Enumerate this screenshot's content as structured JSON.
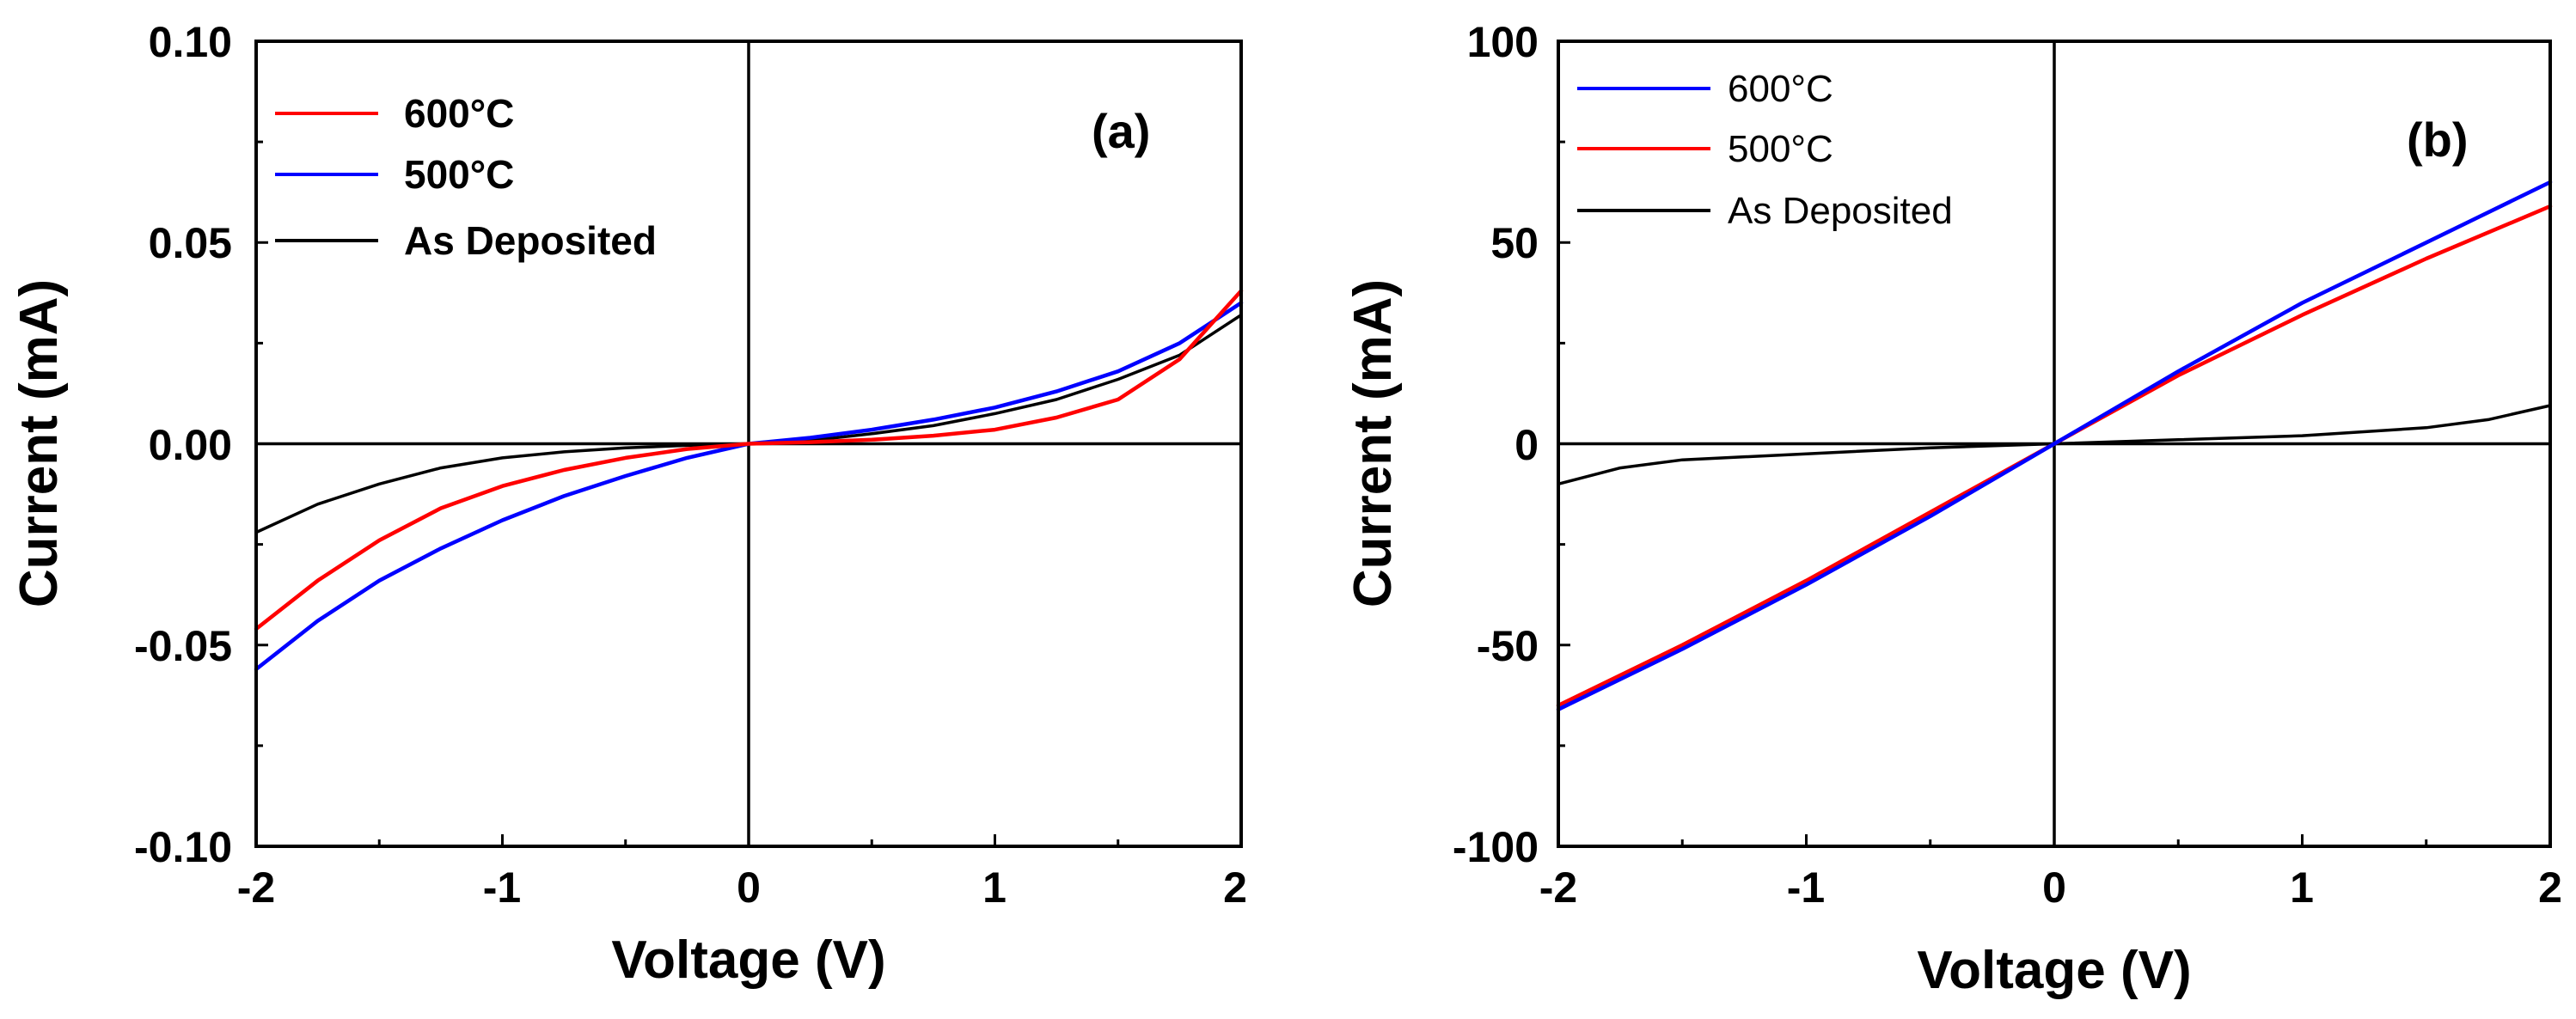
{
  "chart_data": [
    {
      "type": "line",
      "panel_label": "(a)",
      "xlabel": "Voltage (V)",
      "ylabel": "Current (mA)",
      "xlim": [
        -2,
        2
      ],
      "ylim": [
        -0.1,
        0.1
      ],
      "xticks": [
        "-2",
        "-1",
        "0",
        "1",
        "2"
      ],
      "xtick_values": [
        -2,
        -1,
        0,
        1,
        2
      ],
      "yticks": [
        "-0.10",
        "-0.05",
        "0.00",
        "0.05",
        "0.10"
      ],
      "ytick_values": [
        -0.1,
        -0.05,
        0,
        0.05,
        0.1
      ],
      "legend_position": "top-left",
      "series": [
        {
          "name": "600°C",
          "color": "#ff0000",
          "x": [
            -2,
            -1.75,
            -1.5,
            -1.25,
            -1,
            -0.75,
            -0.5,
            -0.25,
            0,
            0.25,
            0.5,
            0.75,
            1,
            1.25,
            1.5,
            1.75,
            2
          ],
          "y": [
            -0.046,
            -0.034,
            -0.024,
            -0.016,
            -0.0105,
            -0.0065,
            -0.0035,
            -0.0013,
            0,
            0.0004,
            0.001,
            0.002,
            0.0035,
            0.0065,
            0.011,
            0.021,
            0.038
          ]
        },
        {
          "name": "500°C",
          "color": "#0000ff",
          "x": [
            -2,
            -1.75,
            -1.5,
            -1.25,
            -1,
            -0.75,
            -0.5,
            -0.25,
            0,
            0.25,
            0.5,
            0.75,
            1,
            1.25,
            1.5,
            1.75,
            2
          ],
          "y": [
            -0.056,
            -0.044,
            -0.034,
            -0.026,
            -0.019,
            -0.013,
            -0.008,
            -0.0035,
            0,
            0.0015,
            0.0035,
            0.006,
            0.009,
            0.013,
            0.018,
            0.025,
            0.035
          ]
        },
        {
          "name": "As Deposited",
          "color": "#000000",
          "x": [
            -2,
            -1.75,
            -1.5,
            -1.25,
            -1,
            -0.75,
            -0.5,
            -0.25,
            0,
            0.25,
            0.5,
            0.75,
            1,
            1.25,
            1.5,
            1.75,
            2
          ],
          "y": [
            -0.022,
            -0.015,
            -0.01,
            -0.006,
            -0.0035,
            -0.002,
            -0.001,
            -0.0004,
            0,
            0.0008,
            0.0025,
            0.0045,
            0.0075,
            0.011,
            0.016,
            0.022,
            0.032
          ]
        }
      ]
    },
    {
      "type": "line",
      "panel_label": "(b)",
      "xlabel": "Voltage (V)",
      "ylabel": "Current (mA)",
      "xlim": [
        -2,
        2
      ],
      "ylim": [
        -100,
        100
      ],
      "xticks": [
        "-2",
        "-1",
        "0",
        "1",
        "2"
      ],
      "xtick_values": [
        -2,
        -1,
        0,
        1,
        2
      ],
      "yticks": [
        "-100",
        "-50",
        "0",
        "50",
        "100"
      ],
      "ytick_values": [
        -100,
        -50,
        0,
        50,
        100
      ],
      "legend_position": "top-left",
      "series": [
        {
          "name": "600°C",
          "color": "#0000ff",
          "x": [
            -2,
            -1.5,
            -1,
            -0.5,
            0,
            0.5,
            1,
            1.5,
            2
          ],
          "y": [
            -66,
            -51,
            -35,
            -18,
            0,
            18,
            35,
            50,
            65
          ]
        },
        {
          "name": "500°C",
          "color": "#ff0000",
          "x": [
            -2,
            -1.5,
            -1,
            -0.5,
            0,
            0.5,
            1,
            1.5,
            2
          ],
          "y": [
            -65,
            -50,
            -34,
            -17,
            0,
            17,
            32,
            46,
            59
          ]
        },
        {
          "name": "As Deposited",
          "color": "#000000",
          "x": [
            -2,
            -1.75,
            -1.5,
            -1,
            -0.5,
            0,
            0.5,
            1,
            1.5,
            1.75,
            2
          ],
          "y": [
            -10,
            -6,
            -4,
            -2.5,
            -1,
            0,
            1,
            2,
            4,
            6,
            9.5
          ]
        }
      ]
    }
  ]
}
